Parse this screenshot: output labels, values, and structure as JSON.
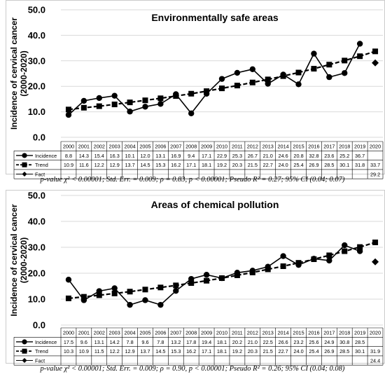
{
  "charts": [
    {
      "title": "Environmentally safe areas",
      "ylabel": "Incidence of cervical cancer (2000-2020)",
      "footnote": "p-value χ² < 0.00001; Std. Err. = 0.009; ρ = 0.83, p < 0.00001; Pseudo R² = 0.27; 95% CI (0.04; 0.07)"
    },
    {
      "title": "Areas of chemical pollution",
      "ylabel": "Incidence of cervical cancer (2000-2020)",
      "footnote": "p-value χ² < 0.00001; Std. Err. = 0.009; ρ = 0.90, p < 0.00001; Pseudo R² = 0.26; 95% CI (0.04; 0.08)"
    }
  ],
  "chart_data": [
    {
      "type": "line",
      "title": "Environmentally safe areas",
      "ylabel": "Incidence of cervical cancer (2000-2020)",
      "ylim": [
        0,
        50
      ],
      "yticks": [
        "0.0",
        "10.0",
        "20.0",
        "30.0",
        "40.0",
        "50.0"
      ],
      "grid": true,
      "categories": [
        "2000",
        "2001",
        "2002",
        "2003",
        "2004",
        "2005",
        "2006",
        "2007",
        "2008",
        "2009",
        "2010",
        "2011",
        "2012",
        "2013",
        "2014",
        "2015",
        "2016",
        "2017",
        "2018",
        "2019",
        "2020"
      ],
      "series": [
        {
          "name": "Incidence",
          "style": "solid-circle",
          "values": [
            8.8,
            14.3,
            15.4,
            16.3,
            10.1,
            12.0,
            13.1,
            16.9,
            9.4,
            17.1,
            22.9,
            25.3,
            26.7,
            21.0,
            24.6,
            20.8,
            32.8,
            23.6,
            25.2,
            36.7,
            null
          ]
        },
        {
          "name": "Trend",
          "style": "dashed-square",
          "values": [
            10.9,
            11.6,
            12.2,
            12.9,
            13.7,
            14.5,
            15.3,
            16.2,
            17.1,
            18.1,
            19.2,
            20.3,
            21.5,
            22.7,
            24.0,
            25.4,
            26.9,
            28.5,
            30.1,
            31.8,
            33.7
          ]
        },
        {
          "name": "Fact",
          "style": "diamond",
          "values": [
            null,
            null,
            null,
            null,
            null,
            null,
            null,
            null,
            null,
            null,
            null,
            null,
            null,
            null,
            null,
            null,
            null,
            null,
            null,
            null,
            29.2
          ]
        }
      ]
    },
    {
      "type": "line",
      "title": "Areas of chemical pollution",
      "ylabel": "Incidence of cervical cancer (2000-2020)",
      "ylim": [
        0,
        50
      ],
      "yticks": [
        "0.0",
        "10.0",
        "20.0",
        "30.0",
        "40.0",
        "50.0"
      ],
      "grid": true,
      "categories": [
        "2000",
        "2001",
        "2002",
        "2003",
        "2004",
        "2005",
        "2006",
        "2007",
        "2008",
        "2009",
        "2010",
        "2011",
        "2012",
        "2013",
        "2014",
        "2015",
        "2016",
        "2017",
        "2018",
        "2019",
        "2020"
      ],
      "series": [
        {
          "name": "Incidence",
          "style": "solid-circle",
          "values": [
            17.5,
            9.6,
            13.1,
            14.2,
            7.8,
            9.6,
            7.8,
            13.2,
            17.8,
            19.4,
            18.1,
            20.2,
            21.0,
            22.5,
            26.6,
            23.2,
            25.6,
            24.9,
            30.8,
            28.5,
            null
          ]
        },
        {
          "name": "Trend",
          "style": "dashed-square",
          "values": [
            10.3,
            10.9,
            11.5,
            12.2,
            12.9,
            13.7,
            14.5,
            15.3,
            16.2,
            17.1,
            18.1,
            19.2,
            20.3,
            21.5,
            22.7,
            24.0,
            25.4,
            26.9,
            28.5,
            30.1,
            31.9
          ]
        },
        {
          "name": "Fact",
          "style": "diamond",
          "values": [
            null,
            null,
            null,
            null,
            null,
            null,
            null,
            null,
            null,
            null,
            null,
            null,
            null,
            null,
            null,
            null,
            null,
            null,
            null,
            null,
            24.4
          ]
        }
      ]
    }
  ]
}
